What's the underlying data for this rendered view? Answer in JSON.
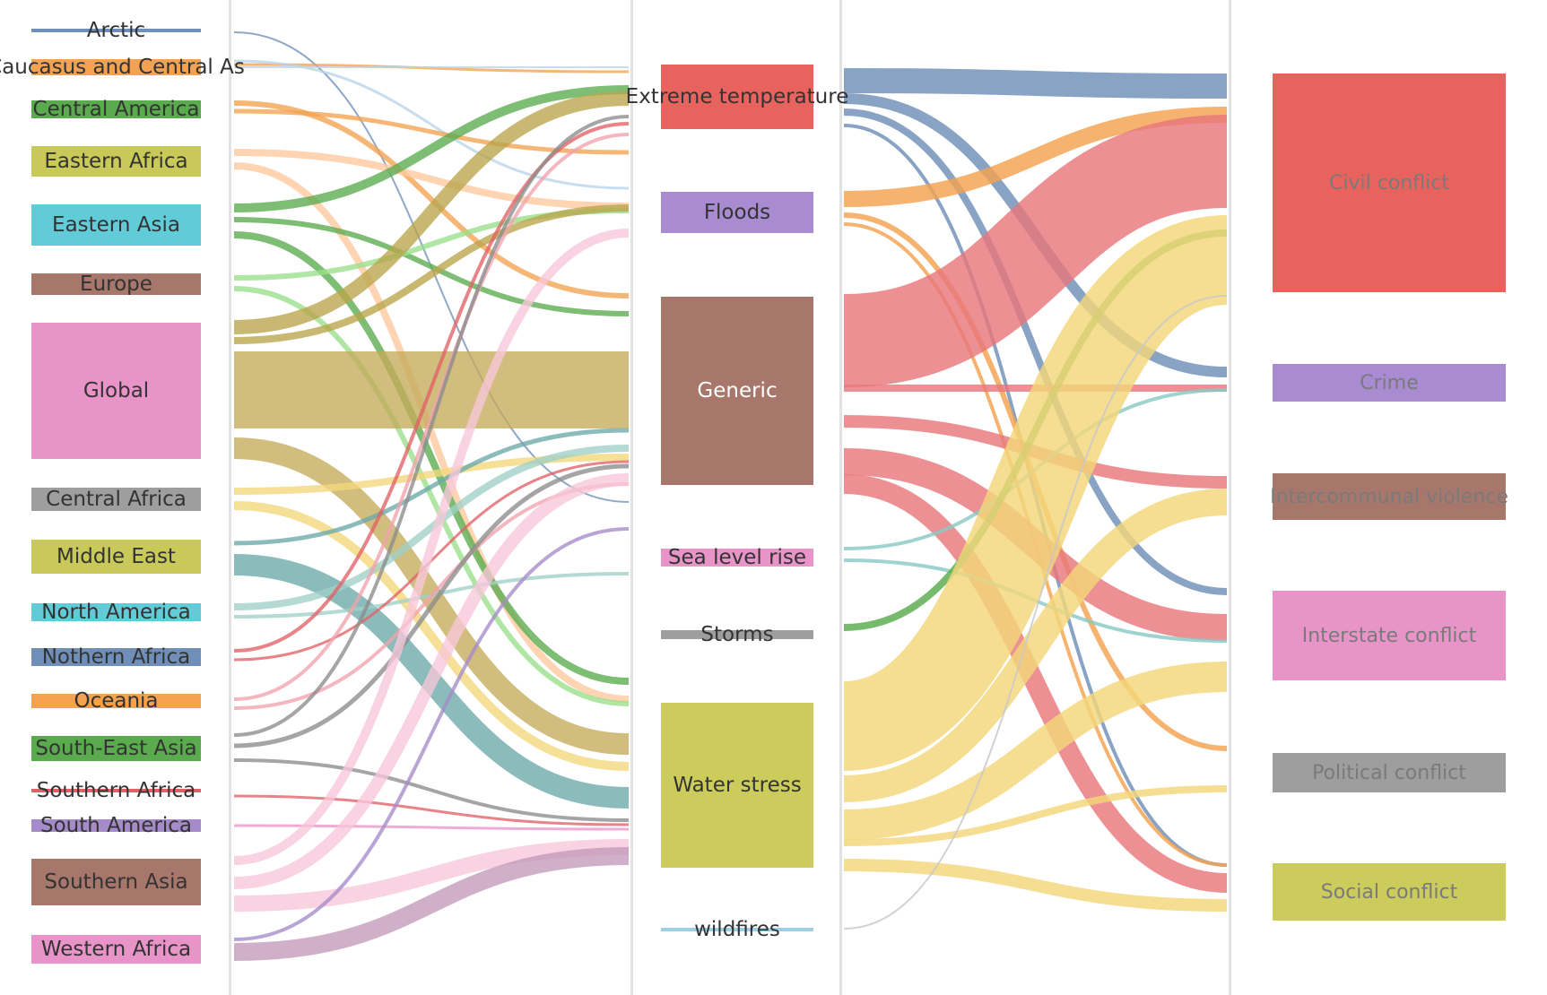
{
  "regions": [
    {
      "label": "Arctic",
      "color": "#6f8fb8"
    },
    {
      "label": "Caucasus and Central As",
      "color": "#f4a24f"
    },
    {
      "label": "Central America",
      "color": "#5aab4d"
    },
    {
      "label": "Eastern Africa",
      "color": "#c9c95a"
    },
    {
      "label": "Eastern Asia",
      "color": "#62cbd8"
    },
    {
      "label": "Europe",
      "color": "#a7776b"
    },
    {
      "label": "Global",
      "color": "#e994c8"
    },
    {
      "label": "Central Africa",
      "color": "#9e9e9e"
    },
    {
      "label": "Middle East",
      "color": "#c9c95a"
    },
    {
      "label": "North America",
      "color": "#62cbd8"
    },
    {
      "label": "Nothern Africa",
      "color": "#6f8fb8"
    },
    {
      "label": "Oceania",
      "color": "#f4a24f"
    },
    {
      "label": "South-East  Asia",
      "color": "#5aab4d"
    },
    {
      "label": "Southern Africa",
      "color": "#e26166"
    },
    {
      "label": "South  America",
      "color": "#a58bc9"
    },
    {
      "label": "Southern Asia",
      "color": "#a7776b"
    },
    {
      "label": "Western Africa",
      "color": "#e994c8"
    }
  ],
  "impacts": [
    {
      "label": "Extreme temperature",
      "color": "#e8635e"
    },
    {
      "label": "Floods",
      "color": "#a98bd1"
    },
    {
      "label": "Generic",
      "color": "#a7776b"
    },
    {
      "label": "Sea level rise",
      "color": "#e994c8"
    },
    {
      "label": "Storms",
      "color": "#9e9e9e"
    },
    {
      "label": "Water stress",
      "color": "#cccc5c"
    },
    {
      "label": "wildfires",
      "color": "#9fcfe2"
    }
  ],
  "conflicts": [
    {
      "label": "Civil conflict",
      "color": "#e8635e"
    },
    {
      "label": "Crime",
      "color": "#a98bd1"
    },
    {
      "label": "Intercommunal violence",
      "color": "#a7776b"
    },
    {
      "label": "Interstate conflict",
      "color": "#e994c8"
    },
    {
      "label": "Political conflict",
      "color": "#9e9e9e"
    },
    {
      "label": "Social conflict",
      "color": "#cccc5c"
    }
  ]
}
